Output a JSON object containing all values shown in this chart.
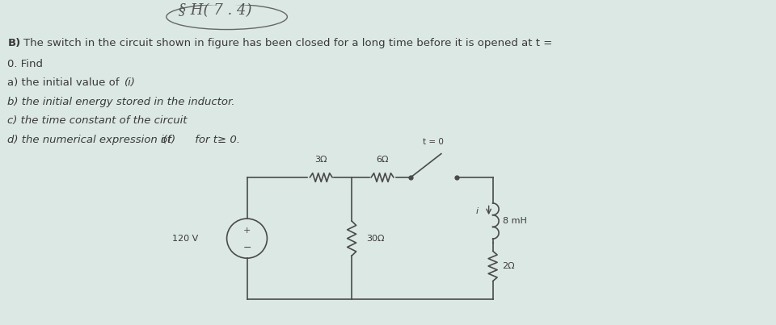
{
  "bg_color": "#dce8e4",
  "paper_color": "#e8f0ec",
  "text_color": "#3a3a3a",
  "line_color": "#4a4a4a",
  "title_handwritten": "§ H( 7 . 4)",
  "line1": "B) The switch in the circuit shown in figure has been closed for a long time before it is opened at t =",
  "line2": "0. Find",
  "line3_prefix": "a) the initial value of ",
  "line3_italic": "(i)",
  "line4": "b) the initial energy stored in the inductor.",
  "line5": "c) the time constant of the circuit",
  "line6_prefix": "d) the numerical expression of ",
  "line6_italic": "i(t)",
  "line6_suffix": " for t≥ 0.",
  "circuit": {
    "voltage_source": "120 V",
    "r1": "3Ω",
    "r2": "6Ω",
    "r3": "30Ω",
    "inductor": "8 mH",
    "r4": "2Ω",
    "switch_label": "t = 0",
    "current_label": "i"
  },
  "font_size_text": 9.5,
  "font_size_circuit": 8,
  "font_size_handwritten": 13
}
